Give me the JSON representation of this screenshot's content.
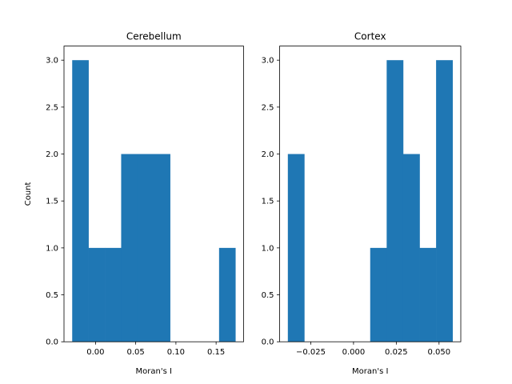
{
  "chart_data": [
    {
      "type": "bar",
      "title": "Cerebellum",
      "xlabel": "Moran's I",
      "ylabel": "Count",
      "bin_edges": [
        -0.029,
        -0.0087,
        0.0116,
        0.0319,
        0.0522,
        0.0725,
        0.0928,
        0.1131,
        0.1334,
        0.1537,
        0.174
      ],
      "values": [
        3,
        1,
        1,
        2,
        2,
        2,
        0,
        0,
        0,
        1
      ],
      "xlim": [
        -0.0392,
        0.1842
      ],
      "ylim": [
        0,
        3.15
      ],
      "xticks": [
        0.0,
        0.05,
        0.1,
        0.15
      ],
      "xtick_labels": [
        "0.00",
        "0.05",
        "0.10",
        "0.15"
      ],
      "yticks": [
        0.0,
        0.5,
        1.0,
        1.5,
        2.0,
        2.5,
        3.0
      ],
      "ytick_labels": [
        "0.0",
        "0.5",
        "1.0",
        "1.5",
        "2.0",
        "2.5",
        "3.0"
      ],
      "color": "#1f77b4"
    },
    {
      "type": "bar",
      "title": "Cortex",
      "xlabel": "Moran's I",
      "ylabel": "",
      "bin_edges": [
        -0.0384,
        -0.02877,
        -0.01914,
        -0.00951,
        0.00012,
        0.00975,
        0.01938,
        0.02901,
        0.03864,
        0.04827,
        0.0579
      ],
      "values": [
        2,
        0,
        0,
        0,
        0,
        1,
        3,
        2,
        1,
        3
      ],
      "xlim": [
        -0.04322,
        0.06272
      ],
      "ylim": [
        0,
        3.15
      ],
      "xticks": [
        -0.025,
        0.0,
        0.025,
        0.05
      ],
      "xtick_labels": [
        "−0.025",
        "0.000",
        "0.025",
        "0.050"
      ],
      "yticks": [
        0.0,
        0.5,
        1.0,
        1.5,
        2.0,
        2.5,
        3.0
      ],
      "ytick_labels": [
        "0.0",
        "0.5",
        "1.0",
        "1.5",
        "2.0",
        "2.5",
        "3.0"
      ],
      "color": "#1f77b4"
    }
  ]
}
